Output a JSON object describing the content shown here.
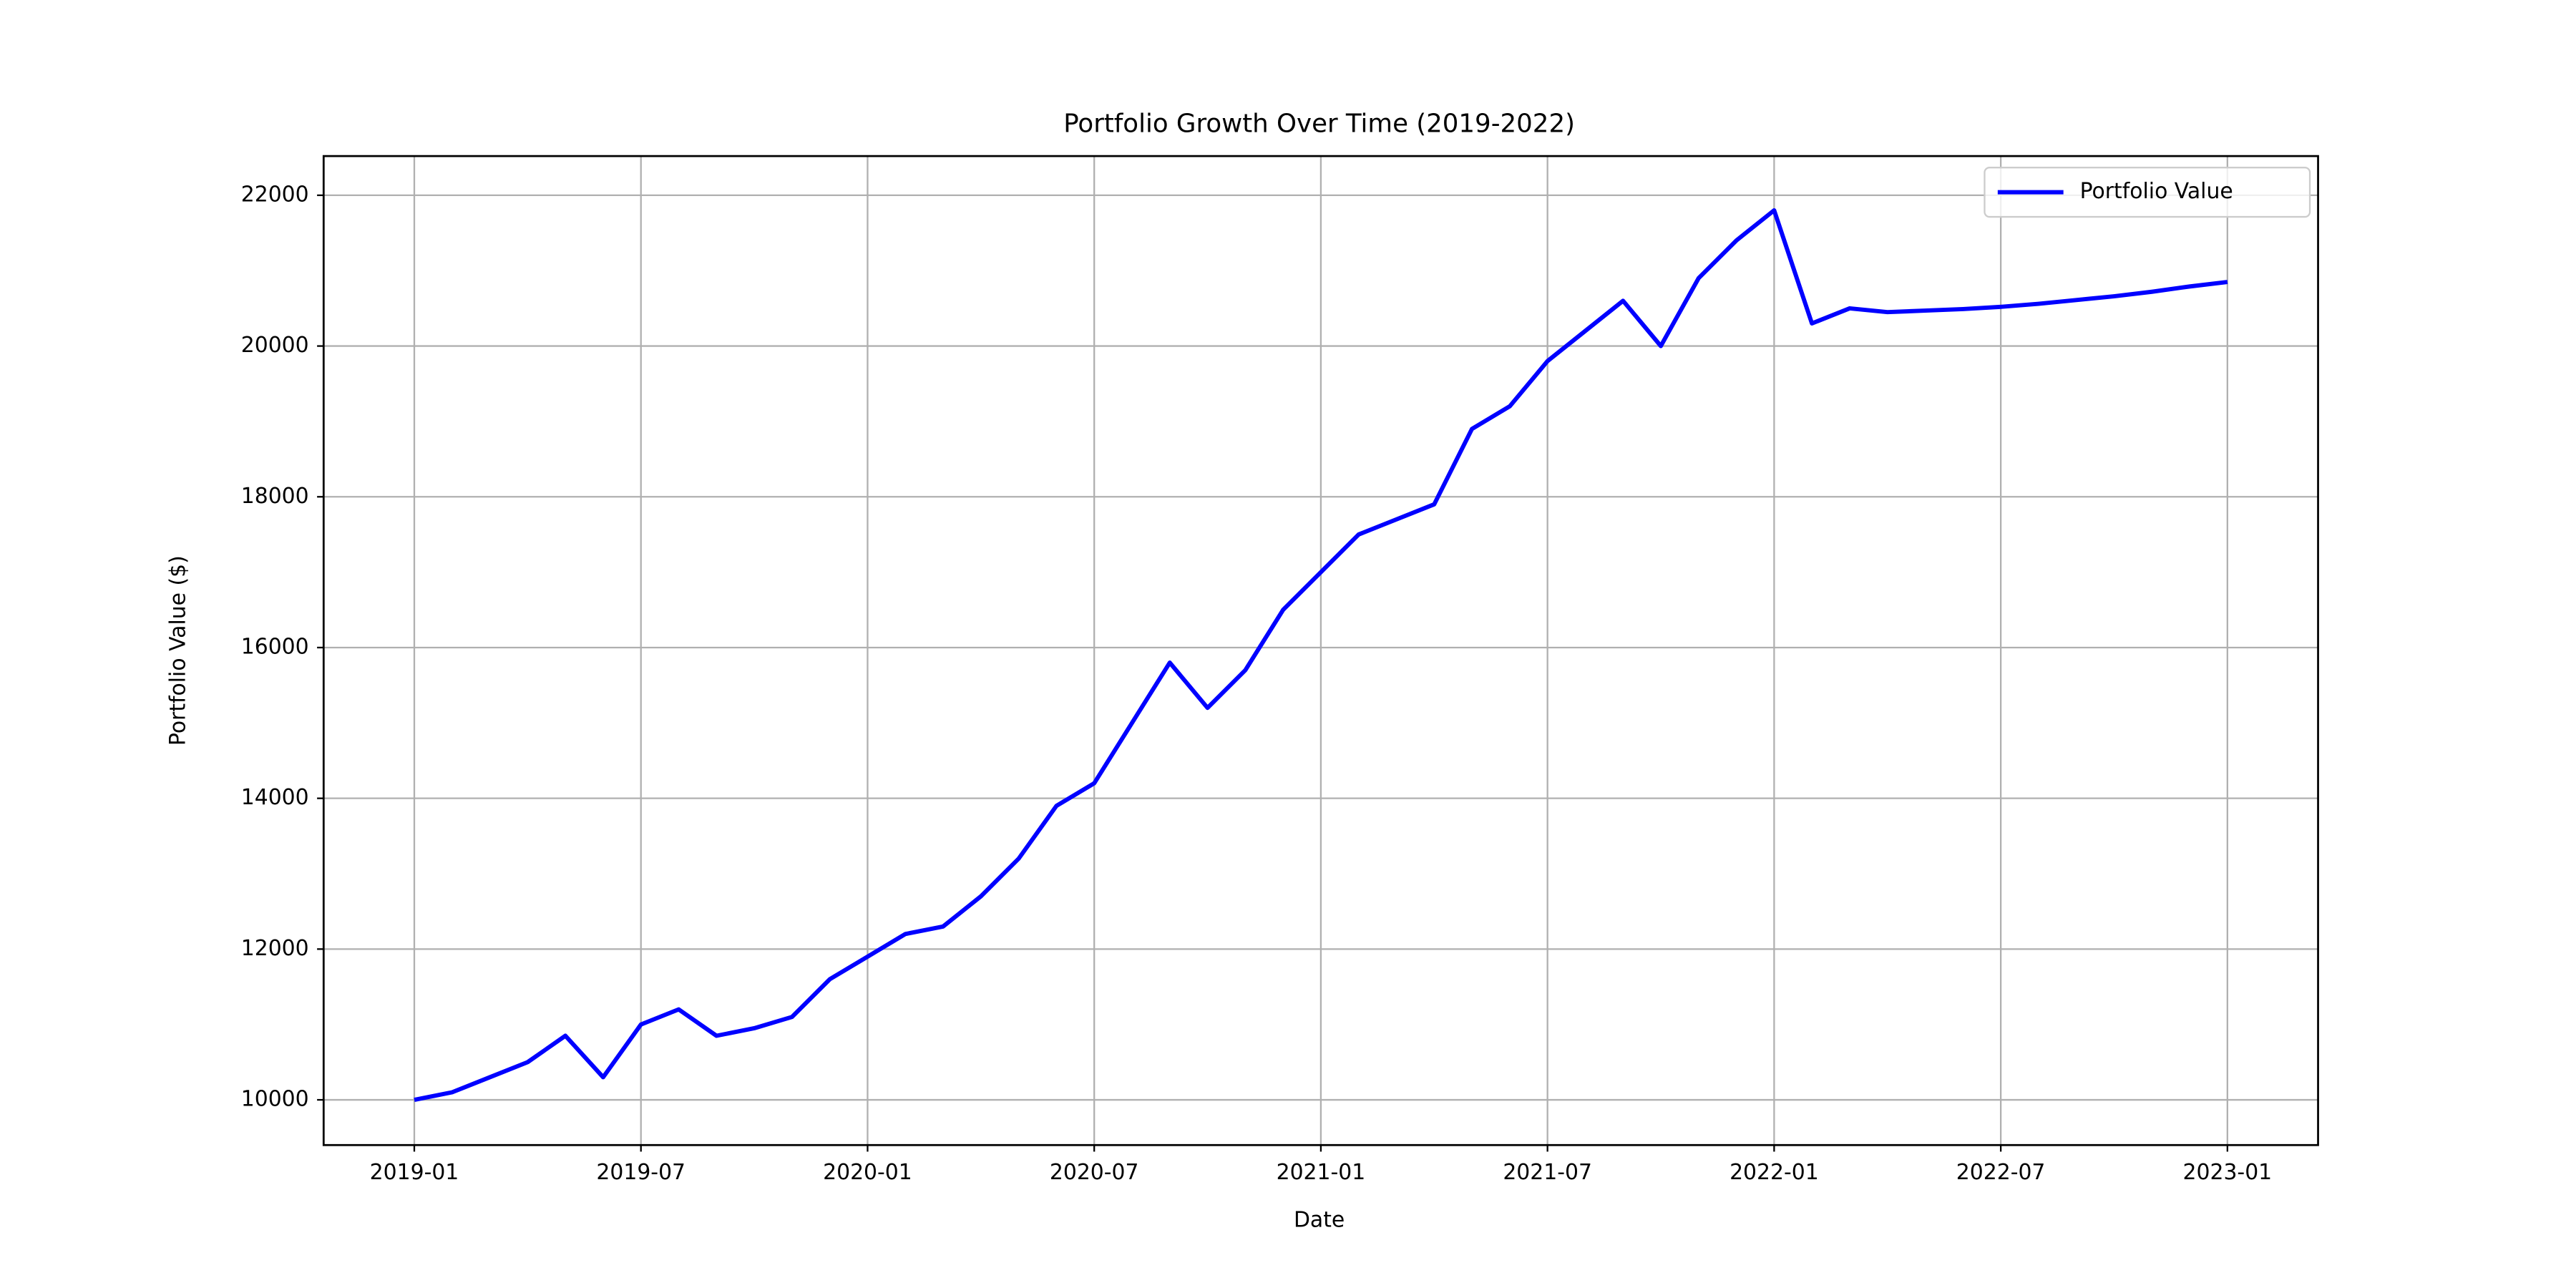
{
  "chart_data": {
    "type": "line",
    "title": "Portfolio Growth Over Time (2019-2022)",
    "x_label": "Date",
    "y_label": "Portfolio Value ($)",
    "x": [
      "2019-01",
      "2019-02",
      "2019-03",
      "2019-04",
      "2019-05",
      "2019-06",
      "2019-07",
      "2019-08",
      "2019-09",
      "2019-10",
      "2019-11",
      "2019-12",
      "2020-01",
      "2020-02",
      "2020-03",
      "2020-04",
      "2020-05",
      "2020-06",
      "2020-07",
      "2020-08",
      "2020-09",
      "2020-10",
      "2020-11",
      "2020-12",
      "2021-01",
      "2021-02",
      "2021-03",
      "2021-04",
      "2021-05",
      "2021-06",
      "2021-07",
      "2021-08",
      "2021-09",
      "2021-10",
      "2021-11",
      "2021-12",
      "2022-01",
      "2022-02",
      "2022-03",
      "2022-04",
      "2022-05",
      "2022-06",
      "2022-07",
      "2022-08",
      "2022-09",
      "2022-10",
      "2022-11",
      "2022-12",
      "2023-01"
    ],
    "series": [
      {
        "name": "Portfolio Value",
        "color": "#0000ff",
        "values": [
          10000,
          10100,
          10300,
          10500,
          10850,
          10300,
          11000,
          11200,
          10850,
          10950,
          11100,
          11600,
          11900,
          12200,
          12300,
          12700,
          13200,
          13900,
          14200,
          15000,
          15800,
          15200,
          15700,
          16500,
          17000,
          17500,
          17700,
          17900,
          18900,
          19200,
          19800,
          20200,
          20600,
          20000,
          20900,
          21400,
          21800,
          20300,
          20500,
          20450,
          20470,
          20490,
          20520,
          20560,
          20610,
          20660,
          20720,
          20790,
          20850
        ]
      }
    ],
    "ylim": [
      9400,
      22520
    ],
    "yticks": [
      10000,
      12000,
      14000,
      16000,
      18000,
      20000,
      22000
    ],
    "xticks": [
      "2019-01",
      "2019-07",
      "2020-01",
      "2020-07",
      "2021-01",
      "2021-07",
      "2022-01",
      "2022-07",
      "2023-01"
    ],
    "grid": true,
    "legend": "upper right"
  }
}
